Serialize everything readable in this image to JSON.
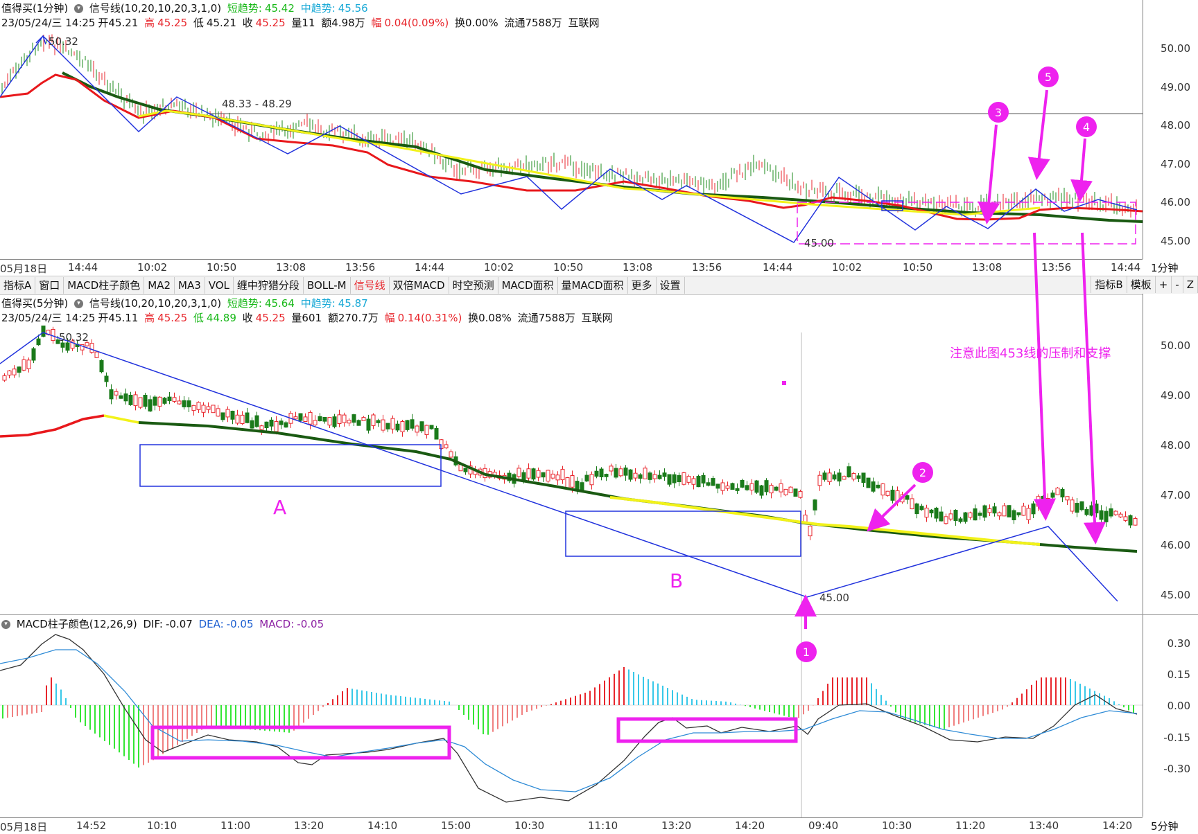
{
  "top_panel": {
    "header_line1": {
      "name": "值得买(1分钟)",
      "indicator": "信号线(10,20,10,20,3,1,0)",
      "short_label": "短趋势:",
      "short_value": "45.42",
      "mid_label": "中趋势:",
      "mid_value": "45.56"
    },
    "header_line2": {
      "date": "23/05/24/三 14:25",
      "open": "开45.21",
      "high_label": "高",
      "high": "45.25",
      "low_label": "低",
      "low": "45.21",
      "close_label": "收",
      "close": "45.25",
      "volume": "量11",
      "amount": "额4.98万",
      "range_label": "幅",
      "range": "0.04(0.09%)",
      "turnover": "换0.00%",
      "float": "流通7588万",
      "sector": "互联网"
    },
    "y_ticks": [
      "50.00",
      "49.00",
      "48.00",
      "47.00",
      "46.00",
      "45.00"
    ],
    "annotations": {
      "peak": "50.32",
      "range_label": "48.33 - 48.29",
      "low": "45.00"
    },
    "time_ticks": [
      "05月18日",
      "14:44",
      "10:02",
      "10:50",
      "13:08",
      "13:56",
      "14:44",
      "10:02",
      "10:50",
      "13:08",
      "13:56",
      "14:44",
      "10:02",
      "10:50",
      "13:08",
      "13:56",
      "14:44"
    ],
    "period_label": "1分钟"
  },
  "toolbar": {
    "items": [
      "指标A",
      "窗口",
      "MACD柱子颜色",
      "MA2",
      "MA3",
      "VOL",
      "缠中狩猎分段",
      "BOLL-M",
      "信号线",
      "双倍MACD",
      "时空预测",
      "MACD面积",
      "量MACD面积",
      "更多",
      "设置"
    ],
    "active": "信号线",
    "right_items": [
      "指标B",
      "模板",
      "+",
      "-",
      "Z"
    ]
  },
  "mid_panel": {
    "header_line1": {
      "name": "值得买(5分钟)",
      "indicator": "信号线(10,20,10,20,3,1,0)",
      "short_label": "短趋势:",
      "short_value": "45.64",
      "mid_label": "中趋势:",
      "mid_value": "45.87"
    },
    "header_line2": {
      "date": "23/05/24/三 14:25",
      "open": "开45.11",
      "high_label": "高",
      "high": "45.25",
      "low_label": "低",
      "low": "44.89",
      "close_label": "收",
      "close": "45.25",
      "volume": "量601",
      "amount": "额270.7万",
      "range_label": "幅",
      "range": "0.14(0.31%)",
      "turnover": "换0.08%",
      "float": "流通7588万",
      "sector": "互联网"
    },
    "y_ticks": [
      "50.00",
      "49.00",
      "48.00",
      "47.00",
      "46.00",
      "45.00"
    ],
    "annotations": {
      "peak": "50.32",
      "low": "45.00",
      "box_a": "A",
      "box_b": "B",
      "note": "注意此图453线的压制和支撑"
    }
  },
  "macd_panel": {
    "header": {
      "name": "MACD柱子颜色(12,26,9)",
      "dif_label": "DIF:",
      "dif": "-0.07",
      "dea_label": "DEA:",
      "dea": "-0.05",
      "macd_label": "MACD:",
      "macd": "-0.05"
    },
    "y_ticks": [
      "0.30",
      "0.15",
      "0.00",
      "-0.15",
      "-0.30"
    ],
    "time_ticks": [
      "05月18日",
      "14:52",
      "10:10",
      "11:00",
      "13:20",
      "14:10",
      "15:00",
      "10:30",
      "11:10",
      "13:20",
      "14:20",
      "09:40",
      "10:30",
      "11:20",
      "13:40",
      "14:20"
    ],
    "period_label": "5分钟"
  },
  "markers": [
    "1",
    "2",
    "3",
    "4",
    "5"
  ],
  "colors": {
    "accent_magenta": "#ee22ee",
    "zigzag_blue": "#2233dd",
    "trend_dark_green": "#1a5a12",
    "trend_red": "#e8181c",
    "trend_yellow": "#f2f21a",
    "macd_red": "#e8262c",
    "macd_green": "#35e635",
    "macd_cyan": "#38c8e8"
  }
}
